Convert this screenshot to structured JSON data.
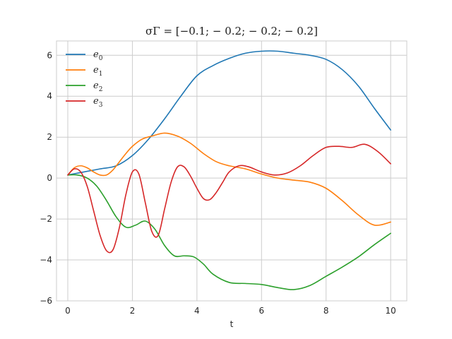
{
  "chart_data": {
    "type": "line",
    "title": "σΓ = [−0.1; − 0.2; − 0.2; − 0.2]",
    "xlabel": "t",
    "ylabel": "",
    "xlim": [
      -0.35,
      10.5
    ],
    "ylim": [
      -6,
      6.7
    ],
    "xticks": [
      0,
      2,
      4,
      6,
      8,
      10
    ],
    "yticks": [
      -6,
      -4,
      -2,
      0,
      2,
      4,
      6
    ],
    "grid": true,
    "legend_position": "top-left",
    "series": [
      {
        "name": "e0",
        "label_base": "e",
        "label_sub": "0",
        "color": "#1f77b4",
        "x": [
          0,
          0.5,
          1,
          1.5,
          2,
          2.5,
          3,
          3.5,
          4,
          4.5,
          5,
          5.5,
          6,
          6.5,
          7,
          7.5,
          8,
          8.5,
          9,
          9.5,
          10
        ],
        "y": [
          0.15,
          0.3,
          0.45,
          0.6,
          1.1,
          1.9,
          2.9,
          4.0,
          5.0,
          5.5,
          5.85,
          6.1,
          6.2,
          6.2,
          6.1,
          6.0,
          5.8,
          5.3,
          4.5,
          3.4,
          2.35
        ]
      },
      {
        "name": "e1",
        "label_base": "e",
        "label_sub": "1",
        "color": "#ff7f0e",
        "x": [
          0,
          0.2,
          0.4,
          0.6,
          0.8,
          1.0,
          1.2,
          1.4,
          1.6,
          1.8,
          2.0,
          2.3,
          2.6,
          3.0,
          3.4,
          3.8,
          4.2,
          4.6,
          5.0,
          5.5,
          6.0,
          6.5,
          7.0,
          7.5,
          8.0,
          8.5,
          9.0,
          9.5,
          10.0
        ],
        "y": [
          0.15,
          0.5,
          0.6,
          0.5,
          0.3,
          0.15,
          0.15,
          0.4,
          0.8,
          1.2,
          1.55,
          1.9,
          2.05,
          2.2,
          2.05,
          1.7,
          1.2,
          0.8,
          0.6,
          0.45,
          0.2,
          0.0,
          -0.1,
          -0.2,
          -0.5,
          -1.1,
          -1.8,
          -2.3,
          -2.15
        ]
      },
      {
        "name": "e2",
        "label_base": "e",
        "label_sub": "2",
        "color": "#2ca02c",
        "x": [
          0,
          0.3,
          0.6,
          0.9,
          1.2,
          1.5,
          1.8,
          2.1,
          2.4,
          2.7,
          3.0,
          3.3,
          3.6,
          3.9,
          4.2,
          4.5,
          5.0,
          5.5,
          6.0,
          6.5,
          7.0,
          7.5,
          8.0,
          8.5,
          9.0,
          9.5,
          10.0
        ],
        "y": [
          0.15,
          0.15,
          0.0,
          -0.4,
          -1.1,
          -1.9,
          -2.4,
          -2.3,
          -2.1,
          -2.5,
          -3.3,
          -3.8,
          -3.8,
          -3.85,
          -4.2,
          -4.7,
          -5.1,
          -5.15,
          -5.2,
          -5.35,
          -5.45,
          -5.25,
          -4.8,
          -4.35,
          -3.85,
          -3.25,
          -2.7
        ]
      },
      {
        "name": "e3",
        "label_base": "e",
        "label_sub": "3",
        "color": "#d62728",
        "x": [
          0,
          0.2,
          0.4,
          0.6,
          0.8,
          1.0,
          1.2,
          1.4,
          1.6,
          1.8,
          2.0,
          2.2,
          2.4,
          2.6,
          2.8,
          3.0,
          3.2,
          3.4,
          3.6,
          3.8,
          4.0,
          4.2,
          4.4,
          4.6,
          4.8,
          5.0,
          5.3,
          5.6,
          6.0,
          6.4,
          6.8,
          7.2,
          7.6,
          8.0,
          8.4,
          8.8,
          9.2,
          9.6,
          10.0
        ],
        "y": [
          0.15,
          0.45,
          0.3,
          -0.4,
          -1.6,
          -2.8,
          -3.55,
          -3.5,
          -2.4,
          -0.8,
          0.3,
          0.2,
          -1.2,
          -2.6,
          -2.8,
          -1.5,
          -0.2,
          0.55,
          0.55,
          0.1,
          -0.5,
          -1.0,
          -1.05,
          -0.7,
          -0.2,
          0.3,
          0.6,
          0.55,
          0.3,
          0.15,
          0.25,
          0.6,
          1.1,
          1.5,
          1.55,
          1.5,
          1.65,
          1.3,
          0.7
        ]
      }
    ]
  }
}
